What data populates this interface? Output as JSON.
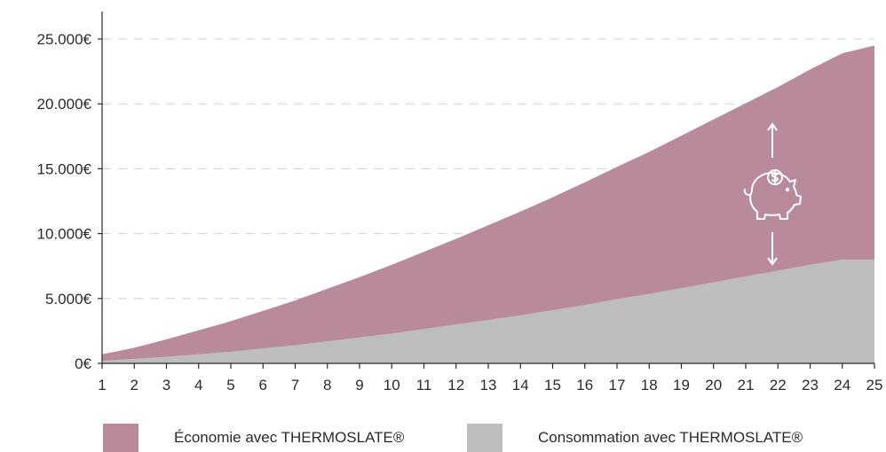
{
  "chart_data": {
    "type": "area",
    "stacked": true,
    "x": [
      1,
      2,
      3,
      4,
      5,
      6,
      7,
      8,
      9,
      10,
      11,
      12,
      13,
      14,
      15,
      16,
      17,
      18,
      19,
      20,
      21,
      22,
      23,
      24,
      25
    ],
    "y_ticks": [
      "0€",
      "5.000€",
      "10.000€",
      "15.000€",
      "20.000€",
      "25.000€"
    ],
    "y_tick_values": [
      0,
      5000,
      10000,
      15000,
      20000,
      25000
    ],
    "x_ticks": [
      "1",
      "2",
      "3",
      "4",
      "5",
      "6",
      "7",
      "8",
      "9",
      "10",
      "11",
      "12",
      "13",
      "14",
      "15",
      "16",
      "17",
      "18",
      "19",
      "20",
      "21",
      "22",
      "23",
      "24",
      "25"
    ],
    "ylim": [
      0,
      25000
    ],
    "grid": "horizontal-dashed",
    "legend_position": "bottom",
    "series": [
      {
        "name": "Consommation avec THERMOSLATE®",
        "color": "#bdbdbf",
        "values": [
          200,
          350,
          500,
          700,
          900,
          1150,
          1400,
          1700,
          2000,
          2300,
          2650,
          3000,
          3350,
          3700,
          4100,
          4500,
          4950,
          5350,
          5800,
          6250,
          6700,
          7150,
          7600,
          8000,
          8000
        ]
      },
      {
        "name": "Économie avec THERMOSLATE®",
        "color": "#b9899c",
        "values": [
          500,
          850,
          1350,
          1850,
          2350,
          2900,
          3450,
          4050,
          4650,
          5300,
          5950,
          6600,
          7300,
          8000,
          8700,
          9450,
          10200,
          10950,
          11750,
          12550,
          13350,
          14150,
          15050,
          15900,
          16500
        ]
      }
    ],
    "annotation": {
      "icon": "piggy-bank-icon",
      "arrows": [
        "arrow-up-icon",
        "arrow-down-icon"
      ]
    }
  },
  "legend": {
    "items": [
      {
        "label": "Économie avec THERMOSLATE®",
        "color": "#b9899c"
      },
      {
        "label": "Consommation avec THERMOSLATE®",
        "color": "#bdbdbf"
      }
    ]
  }
}
